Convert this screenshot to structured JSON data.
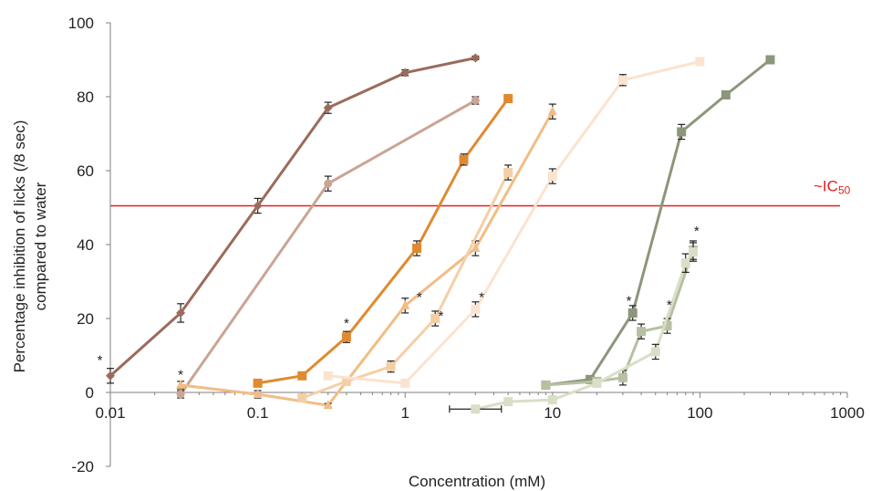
{
  "chart_data": {
    "type": "line",
    "xlabel": "Concentration (mM)",
    "ylabel_line1": "Percentage inhibition of licks (/8 sec)",
    "ylabel_line2": "compared to water",
    "x_scale": "log",
    "xlim": [
      0.01,
      1000
    ],
    "ylim": [
      -20,
      100
    ],
    "x_ticks": [
      0.01,
      0.1,
      1,
      10,
      100,
      1000
    ],
    "x_tick_labels": [
      "0.01",
      "0.1",
      "1",
      "10",
      "100",
      "1000"
    ],
    "y_ticks": [
      -20,
      0,
      20,
      40,
      60,
      80,
      100
    ],
    "y_tick_labels": [
      "-20",
      "0",
      "20",
      "40",
      "60",
      "80",
      "100"
    ],
    "reference_line": {
      "y": 50.5,
      "label_main": "~IC",
      "label_sub": "50",
      "color": "#e02020"
    },
    "series": [
      {
        "color": "#9a6b5c",
        "marker": "diamond",
        "x": [
          0.01,
          0.03,
          0.1,
          0.3,
          1,
          3
        ],
        "y": [
          4.5,
          21.5,
          50.5,
          77,
          86.5,
          90.5
        ],
        "err": [
          2,
          2.5,
          2,
          1.5,
          0.8,
          0.5
        ]
      },
      {
        "color": "#caa494",
        "marker": "circle",
        "x": [
          0.03,
          0.3,
          3
        ],
        "y": [
          -0.5,
          56.5,
          79
        ],
        "err": [
          1,
          2,
          1
        ]
      },
      {
        "color": "#e08a30",
        "marker": "square",
        "x": [
          0.1,
          0.2,
          0.4,
          1.2,
          2.5,
          5
        ],
        "y": [
          2.5,
          4.5,
          15,
          39,
          63,
          79.5
        ],
        "err": [
          1,
          1,
          1.5,
          2,
          1.5,
          0.5
        ]
      },
      {
        "color": "#f1bd86",
        "marker": "triangle",
        "x": [
          0.03,
          0.1,
          0.3,
          1,
          3,
          10
        ],
        "y": [
          2,
          -0.5,
          -3.5,
          23.5,
          39,
          76
        ],
        "err": [
          1,
          1,
          0.5,
          2,
          2,
          2
        ]
      },
      {
        "color": "#f4cfa6",
        "marker": "square",
        "x": [
          0.2,
          0.4,
          0.8,
          1.6,
          5
        ],
        "y": [
          -1.5,
          3,
          7,
          20,
          59.5
        ],
        "err": [
          1,
          1,
          1.5,
          2,
          2
        ]
      },
      {
        "color": "#fbe3cf",
        "marker": "square",
        "x": [
          0.3,
          1,
          3,
          10,
          30,
          100
        ],
        "y": [
          4.5,
          2.5,
          22.5,
          58.5,
          84.5,
          89.5
        ],
        "err": [
          1,
          1,
          2,
          2,
          1.5,
          0.5
        ]
      },
      {
        "color": "#8c967a",
        "marker": "square",
        "x": [
          9,
          18,
          35,
          75,
          150,
          300
        ],
        "y": [
          2,
          3.5,
          21.5,
          70.5,
          80.5,
          90
        ],
        "err": [
          1,
          1,
          2,
          2,
          1,
          0.5
        ]
      },
      {
        "color": "#b6c0a2",
        "marker": "square",
        "x": [
          9,
          20,
          30,
          40,
          60,
          90
        ],
        "y": [
          2,
          3,
          4,
          16.5,
          18,
          38.5
        ],
        "err": [
          1,
          1,
          2,
          2,
          2,
          2.5
        ]
      },
      {
        "color": "#d8dfc6",
        "marker": "square",
        "x": [
          3,
          5,
          10,
          20,
          50,
          80,
          90
        ],
        "y": [
          -4.5,
          -2.5,
          -2,
          2.5,
          11,
          35,
          38
        ],
        "err": [
          0.5,
          1,
          1,
          1,
          2,
          2.5,
          2.5
        ],
        "xerr": [
          1.5,
          0,
          0,
          0,
          0,
          0,
          0
        ]
      }
    ],
    "significance_marks": [
      {
        "x": 0.0085,
        "y": 9.5,
        "text": "*"
      },
      {
        "x": 0.03,
        "y": 5.5,
        "text": "*"
      },
      {
        "x": 0.4,
        "y": 19.5,
        "text": "*"
      },
      {
        "x": 1.25,
        "y": 26.5,
        "text": "*"
      },
      {
        "x": 1.75,
        "y": 21.5,
        "text": "*"
      },
      {
        "x": 3.3,
        "y": 26.5,
        "text": "*"
      },
      {
        "x": 33,
        "y": 25.5,
        "text": "*"
      },
      {
        "x": 62,
        "y": 24.5,
        "text": "*"
      },
      {
        "x": 95,
        "y": 44.5,
        "text": "*"
      }
    ]
  }
}
